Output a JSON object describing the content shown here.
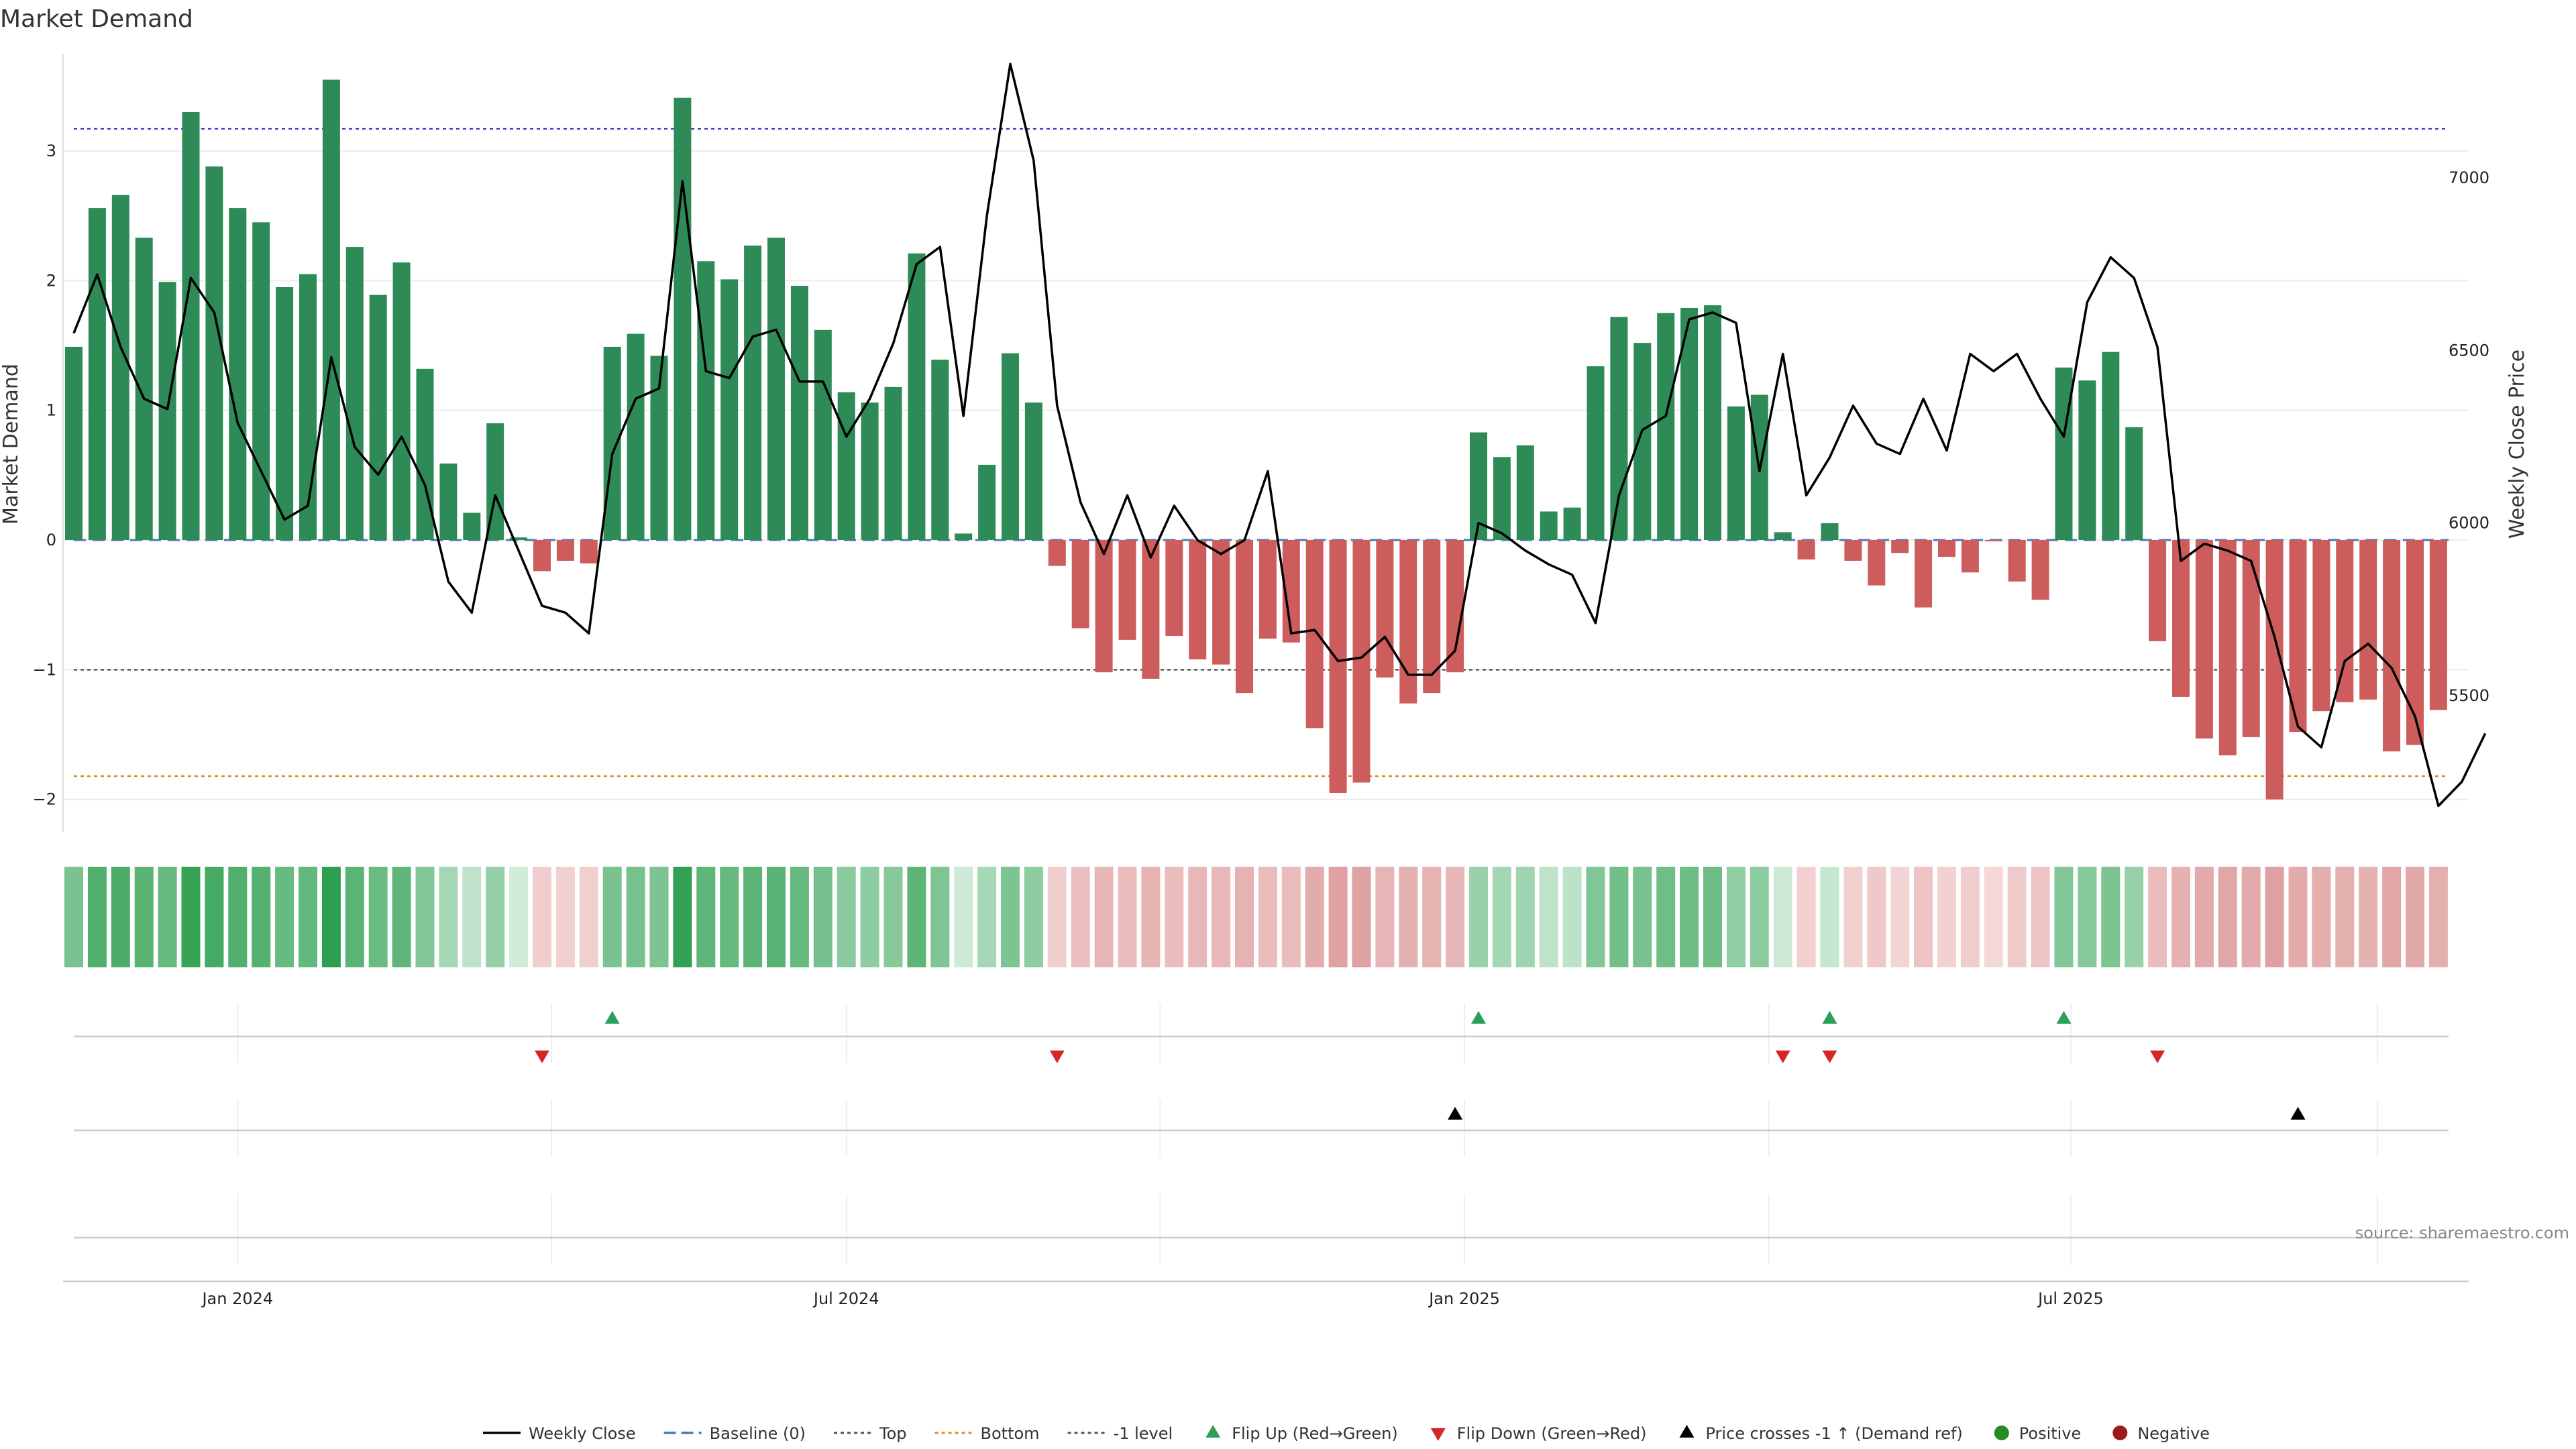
{
  "chart_data": {
    "type": "bar",
    "title": "Market Demand",
    "y_label": "Market Demand",
    "y2_label": "Weekly Close Price",
    "x_ticks": [
      {
        "label": "Jan 2024",
        "index": 7
      },
      {
        "label": "Jul 2024",
        "index": 33
      },
      {
        "label": "Jan 2025",
        "index": 59.4
      },
      {
        "label": "Jul 2025",
        "index": 85.3
      }
    ],
    "y_ticks": [
      -2,
      -1,
      0,
      1,
      2,
      3
    ],
    "y_labels": [
      "−2",
      "−1",
      "0",
      "1",
      "2",
      "3"
    ],
    "y2_ticks": [
      5500,
      6000,
      6500,
      7000
    ],
    "y2_labels": [
      "5500",
      "6000",
      "6500",
      "7000"
    ],
    "ylim": [
      -2.25,
      3.75
    ],
    "y2lim": [
      5105,
      7360
    ],
    "reference_lines": {
      "top": 3.17,
      "bottom": -1.82,
      "minus_one": -1.0,
      "baseline": 0
    },
    "demand": [
      1.49,
      2.56,
      2.66,
      2.33,
      1.99,
      3.3,
      2.88,
      2.56,
      2.45,
      1.95,
      2.05,
      3.55,
      2.26,
      1.89,
      2.14,
      1.32,
      0.59,
      0.21,
      0.9,
      0.02,
      -0.24,
      -0.16,
      -0.18,
      1.49,
      1.59,
      1.42,
      3.41,
      2.15,
      2.01,
      2.27,
      2.33,
      1.96,
      1.62,
      1.14,
      1.06,
      1.18,
      2.21,
      1.39,
      0.05,
      0.58,
      1.44,
      1.06,
      -0.2,
      -0.68,
      -1.02,
      -0.77,
      -1.07,
      -0.74,
      -0.92,
      -0.96,
      -1.18,
      -0.76,
      -0.79,
      -1.45,
      -1.95,
      -1.87,
      -1.06,
      -1.26,
      -1.18,
      -1.02,
      0.83,
      0.64,
      0.73,
      0.22,
      0.25,
      1.34,
      1.72,
      1.52,
      1.75,
      1.79,
      1.81,
      1.03,
      1.12,
      0.06,
      -0.15,
      0.13,
      -0.16,
      -0.35,
      -0.1,
      -0.52,
      -0.13,
      -0.25,
      -0.01,
      -0.32,
      -0.46,
      1.33,
      1.23,
      1.45,
      0.87,
      -0.78,
      -1.21,
      -1.53,
      -1.66,
      -1.52,
      -2.0,
      -1.48,
      -1.32,
      -1.25,
      -1.23,
      -1.63,
      -1.58,
      -1.31
    ],
    "weekly_close": [
      6550,
      6720,
      6510,
      6360,
      6330,
      6710,
      6610,
      6290,
      6150,
      6010,
      6050,
      6480,
      6220,
      6140,
      6250,
      6110,
      5830,
      5740,
      6080,
      5920,
      5760,
      5740,
      5680,
      6200,
      6360,
      6390,
      6990,
      6440,
      6420,
      6540,
      6560,
      6410,
      6410,
      6250,
      6360,
      6520,
      6750,
      6800,
      6310,
      6890,
      7330,
      7050,
      6340,
      6060,
      5910,
      6080,
      5900,
      6050,
      5950,
      5910,
      5950,
      6150,
      5680,
      5690,
      5600,
      5610,
      5670,
      5560,
      5560,
      5630,
      6000,
      5970,
      5920,
      5880,
      5850,
      5710,
      6080,
      6270,
      6310,
      6590,
      6610,
      6580,
      6150,
      6490,
      6080,
      6190,
      6340,
      6230,
      6200,
      6360,
      6210,
      6490,
      6440,
      6490,
      6360,
      6250,
      6640,
      6770,
      6710,
      6510,
      5890,
      5940,
      5920,
      5890,
      5670,
      5410,
      5350,
      5600,
      5650,
      5580,
      5440,
      5180,
      5250,
      5390
    ],
    "flip_up": [
      23,
      60,
      75,
      85
    ],
    "flip_down": [
      20,
      42,
      73,
      75,
      89
    ],
    "price_cross_up": [
      59,
      95
    ],
    "legend": [
      {
        "label": "Weekly Close",
        "kind": "line",
        "color": "#000000"
      },
      {
        "label": "Baseline (0)",
        "kind": "dash",
        "color": "#4878b8"
      },
      {
        "label": "Top",
        "kind": "dot",
        "color": "#555555"
      },
      {
        "label": "Bottom",
        "kind": "dot",
        "color": "#e08a1e"
      },
      {
        "label": "-1 level",
        "kind": "dot",
        "color": "#555555"
      },
      {
        "label": "Flip Up (Red→Green)",
        "kind": "tri-up",
        "color": "#2ca05a"
      },
      {
        "label": "Flip Down (Green→Red)",
        "kind": "tri-down",
        "color": "#d62728"
      },
      {
        "label": "Price crosses -1 ↑ (Demand ref)",
        "kind": "tri-up",
        "color": "#000000"
      },
      {
        "label": "Positive",
        "kind": "dot-marker",
        "color": "#228b22"
      },
      {
        "label": "Negative",
        "kind": "dot-marker",
        "color": "#9b1b1b"
      }
    ],
    "source": "source: sharemaestro.com"
  },
  "colors": {
    "positive_bar": "#2e8b57",
    "negative_bar": "#cd5c5c",
    "top_line": "#4444cc",
    "bottom_line": "#e08a1e",
    "minus_one_line": "#555555",
    "baseline": "#4878b8",
    "flip_up": "#2ca05a",
    "flip_down": "#d62728"
  }
}
